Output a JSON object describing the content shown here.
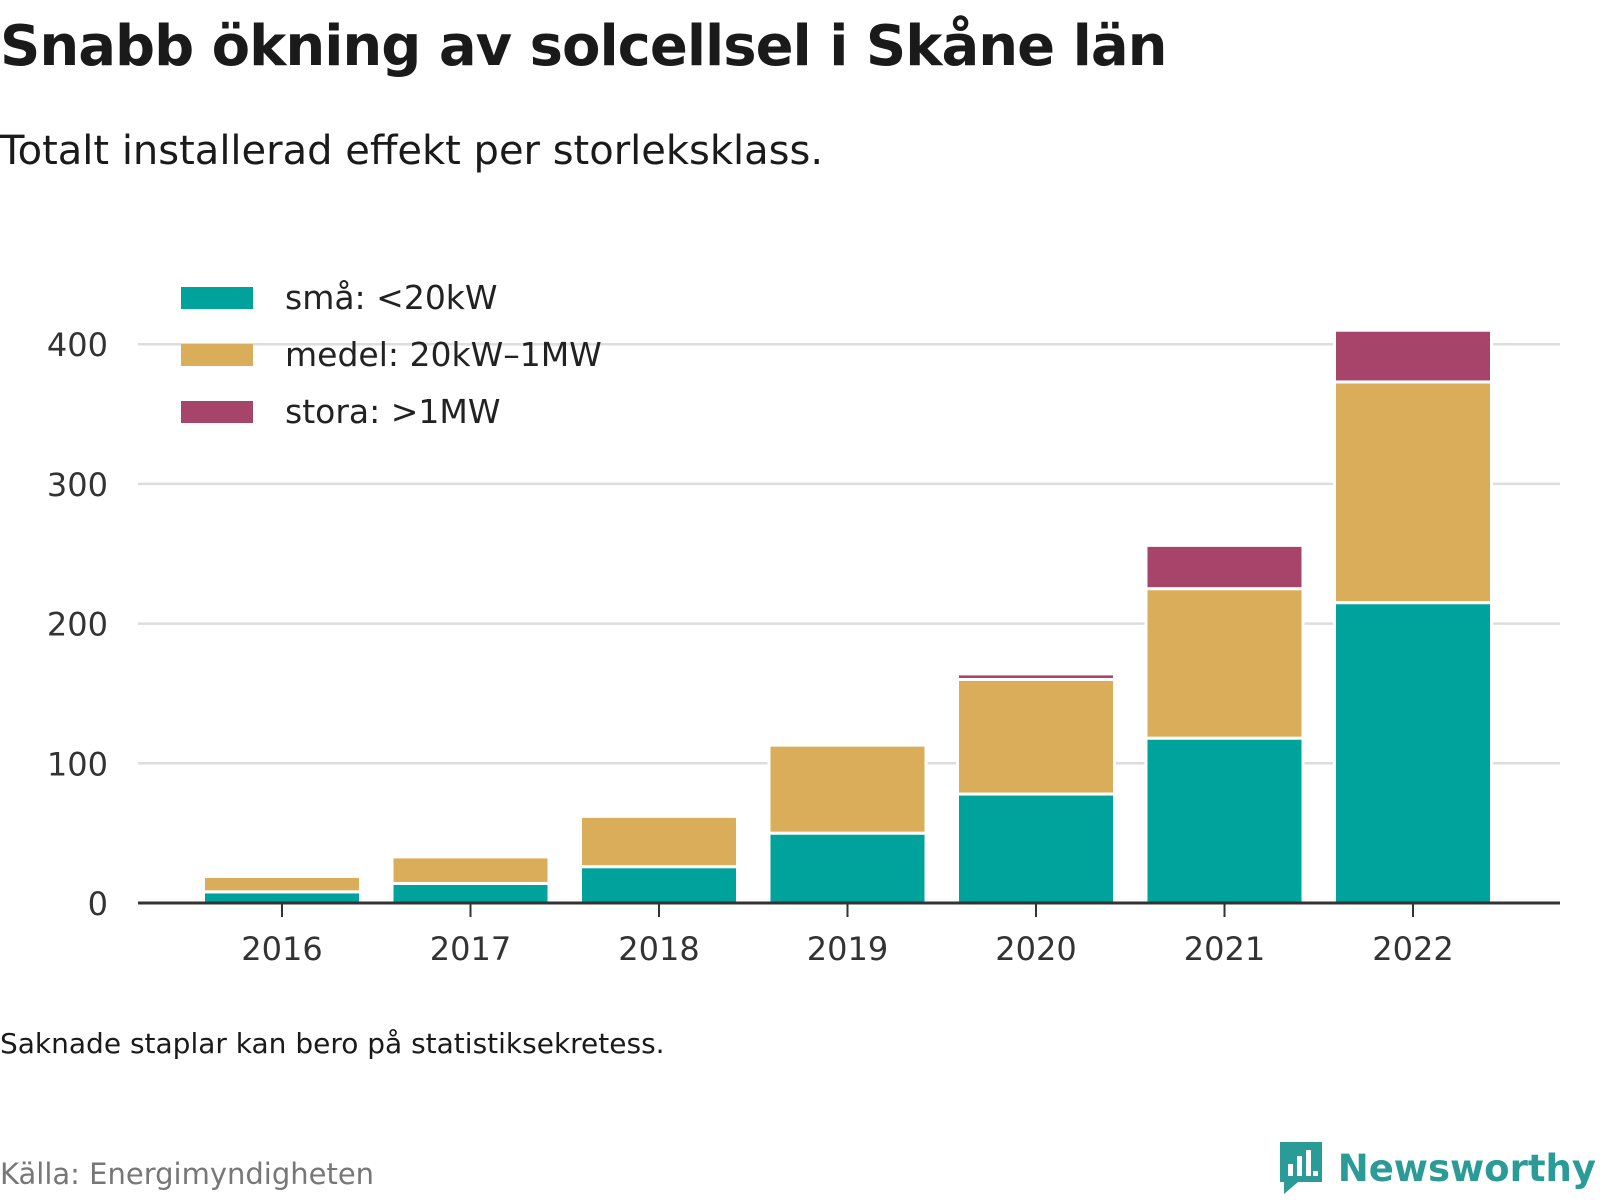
{
  "header": {
    "title": "Snabb ökning av solcellsel i Skåne län",
    "subtitle": "Totalt installerad effekt per storleksklass."
  },
  "footer": {
    "note": "Saknade staplar kan bero på statistiksekretess.",
    "source": "Källa: Energimyndigheten",
    "brand": "Newsworthy",
    "brand_icon": "newsworthy-logo-icon"
  },
  "colors": {
    "sma": "#00a39b",
    "medel": "#d9ad5a",
    "stora": "#a6446a",
    "grid": "#dddddd",
    "axis": "#333333",
    "brand": "#2a9b96"
  },
  "chart_data": {
    "type": "bar",
    "stacked": true,
    "categories": [
      "2016",
      "2017",
      "2018",
      "2019",
      "2020",
      "2021",
      "2022"
    ],
    "series": [
      {
        "name": "små: <20kW",
        "color": "#00a39b",
        "values": [
          8,
          14,
          26,
          50,
          78,
          118,
          215
        ]
      },
      {
        "name": "medel: 20kW–1MW",
        "color": "#d9ad5a",
        "values": [
          11,
          19,
          36,
          63,
          82,
          107,
          158
        ]
      },
      {
        "name": "stora: >1MW",
        "color": "#a6446a",
        "values": [
          0,
          0,
          0,
          0,
          4,
          31,
          37
        ]
      }
    ],
    "yticks": [
      0,
      100,
      200,
      300,
      400
    ],
    "ylim": [
      0,
      400
    ],
    "grid": true,
    "legend_position": "top-left",
    "title": "",
    "xlabel": "",
    "ylabel": ""
  }
}
